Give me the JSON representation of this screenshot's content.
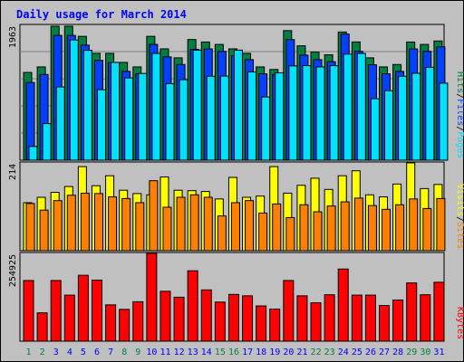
{
  "chart_data": [
    {
      "type": "bar",
      "title": "Daily usage for March 2014",
      "categories": [
        "1",
        "2",
        "3",
        "4",
        "5",
        "6",
        "7",
        "8",
        "9",
        "10",
        "11",
        "12",
        "13",
        "14",
        "15",
        "16",
        "17",
        "18",
        "19",
        "20",
        "21",
        "22",
        "23",
        "24",
        "25",
        "26",
        "27",
        "28",
        "29",
        "30",
        "31"
      ],
      "weekend_days": [
        "1",
        "2",
        "8",
        "9",
        "15",
        "16",
        "22",
        "23",
        "29",
        "30"
      ],
      "ylim": [
        0,
        1963
      ],
      "y_tick_label": "1963",
      "axis_label_parts": [
        "Pages",
        "/",
        "Files",
        "/",
        "Hits"
      ],
      "series": [
        {
          "name": "Hits",
          "color": "#008040",
          "values": [
            1295,
            1375,
            1963,
            1963,
            1817,
            1571,
            1571,
            1440,
            1375,
            1817,
            1636,
            1506,
            1771,
            1735,
            1700,
            1636,
            1571,
            1375,
            1338,
            1900,
            1680,
            1590,
            1550,
            1880,
            1736,
            1506,
            1375,
            1410,
            1735,
            1700,
            1750
          ]
        },
        {
          "name": "Files",
          "color": "#0040ff",
          "values": [
            1150,
            1265,
            1830,
            1830,
            1690,
            1470,
            1440,
            1310,
            1275,
            1700,
            1520,
            1410,
            1630,
            1635,
            1600,
            1536,
            1480,
            1275,
            1265,
            1770,
            1545,
            1480,
            1450,
            1850,
            1600,
            1406,
            1275,
            1310,
            1635,
            1600,
            1665
          ]
        },
        {
          "name": "Pages",
          "color": "#00e0ff",
          "values": [
            225,
            555,
            1085,
            1765,
            1615,
            1045,
            1440,
            1216,
            1280,
            1570,
            1133,
            1190,
            1618,
            1240,
            1242,
            1618,
            1302,
            940,
            1290,
            1390,
            1393,
            1375,
            1393,
            1560,
            1570,
            915,
            1031,
            1240,
            1283,
            1370,
            1140
          ]
        }
      ]
    },
    {
      "type": "bar",
      "ylim": [
        0,
        214
      ],
      "y_tick_label": "214",
      "axis_label_parts": [
        "Sites",
        "/",
        "Visits"
      ],
      "series": [
        {
          "name": "Visits",
          "color": "#ffff00",
          "values": [
            118,
            131,
            143,
            157,
            205,
            159,
            183,
            148,
            140,
            137,
            180,
            148,
            147,
            145,
            127,
            179,
            131,
            134,
            205,
            141,
            160,
            177,
            150,
            183,
            195,
            137,
            132,
            163,
            214,
            152,
            162
          ]
        },
        {
          "name": "Sites",
          "color": "#ff8000",
          "values": [
            116,
            100,
            123,
            136,
            141,
            140,
            132,
            128,
            118,
            171,
            107,
            131,
            137,
            131,
            86,
            118,
            123,
            93,
            115,
            82,
            113,
            96,
            110,
            120,
            129,
            111,
            102,
            113,
            127,
            104,
            128
          ]
        }
      ]
    },
    {
      "type": "bar",
      "ylim": [
        0,
        254925
      ],
      "y_tick_label": "254925",
      "axis_label_parts": [
        "KBytes"
      ],
      "series": [
        {
          "name": "KBytes",
          "color": "#ff0000",
          "values": [
            177000,
            84000,
            177000,
            135000,
            192000,
            178000,
            107000,
            94000,
            116000,
            254925,
            146000,
            129000,
            205000,
            150000,
            115000,
            137000,
            133000,
            104000,
            95000,
            177000,
            133000,
            113000,
            136000,
            210000,
            135000,
            135000,
            105000,
            121000,
            170000,
            136000,
            172000
          ]
        }
      ]
    }
  ],
  "colors": {
    "background": "#c0c0c0",
    "plot_background": "#c0c0c0",
    "gridline": "#808080",
    "title": "#0000ff",
    "day_label": "#0000ff",
    "weekend_day_label": "#008040",
    "separator": "#000000"
  }
}
